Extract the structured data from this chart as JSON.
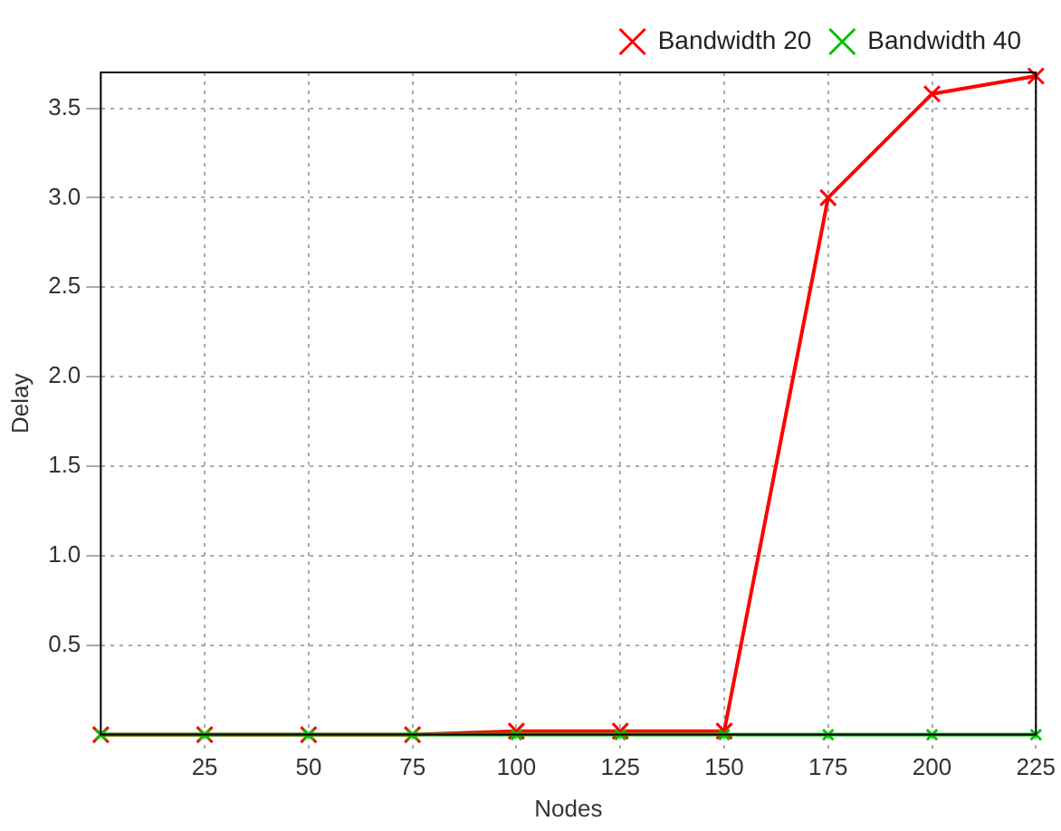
{
  "chart_data": {
    "type": "line",
    "xlabel": "Nodes",
    "ylabel": "Delay",
    "x": [
      0,
      25,
      50,
      75,
      100,
      125,
      150,
      175,
      200,
      225
    ],
    "series": [
      {
        "name": "Bandwidth 20",
        "color": "#ff0000",
        "values": [
          0,
          0,
          0,
          0,
          0.02,
          0.02,
          0.02,
          3.0,
          3.58,
          3.68
        ]
      },
      {
        "name": "Bandwidth 40",
        "color": "#00c000",
        "values": [
          0,
          0,
          0,
          0,
          0,
          0,
          0,
          0,
          0,
          0
        ]
      }
    ],
    "xlim": [
      0,
      225
    ],
    "xticks": [
      25,
      50,
      75,
      100,
      125,
      150,
      175,
      200,
      225
    ],
    "ylim": [
      0,
      3.7
    ],
    "yticks": [
      0.5,
      {
        "value": 1,
        "label": "1.0"
      },
      1.5,
      {
        "value": 2,
        "label": "2.0"
      },
      2.5,
      {
        "value": 3,
        "label": "3.0"
      },
      3.5
    ],
    "grid": true,
    "legend": "top right",
    "marker": "cross",
    "line_style": "solid"
  }
}
